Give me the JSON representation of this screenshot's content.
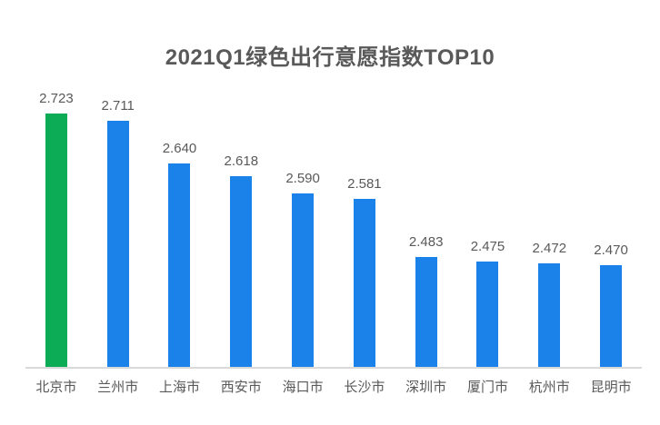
{
  "page": {
    "background": "#ffffff"
  },
  "chart_data": {
    "type": "bar",
    "title": "2021Q1绿色出行意愿指数TOP10",
    "categories": [
      "北京市",
      "兰州市",
      "上海市",
      "西安市",
      "海口市",
      "长沙市",
      "深圳市",
      "厦门市",
      "杭州市",
      "昆明市"
    ],
    "values": [
      2.723,
      2.711,
      2.64,
      2.618,
      2.59,
      2.581,
      2.483,
      2.475,
      2.472,
      2.47
    ],
    "value_labels": [
      "2.723",
      "2.711",
      "2.640",
      "2.618",
      "2.590",
      "2.581",
      "2.483",
      "2.475",
      "2.472",
      "2.470"
    ],
    "xlabel": "",
    "ylabel": "",
    "ylim": [
      2.3,
      2.76
    ],
    "grid": false,
    "legend": null,
    "highlight_index": 0,
    "colors": {
      "bar": "#1a82e8",
      "highlight": "#0cab55",
      "axis_line": "#d9d9d9",
      "text": "#595959",
      "title": "#595959"
    }
  }
}
